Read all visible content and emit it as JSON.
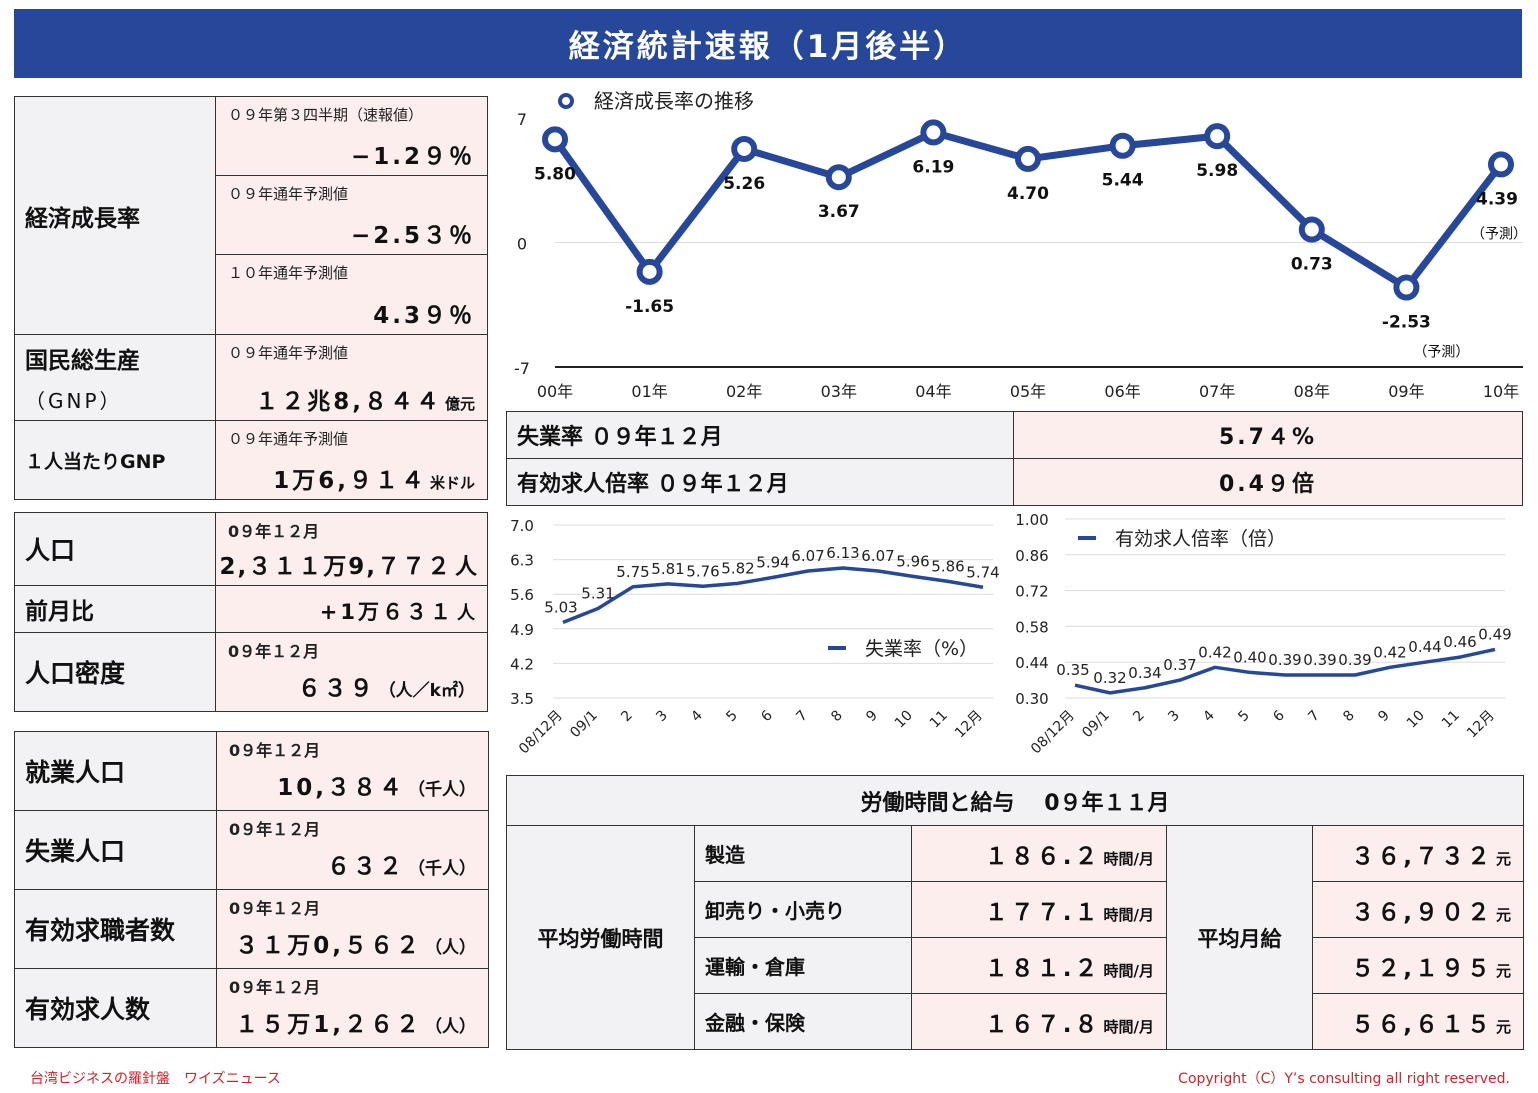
{
  "header": {
    "title": "経済統計速報（1月後半）"
  },
  "growth_block": {
    "label": "経済成長率",
    "rows": [
      {
        "sub": "０９年第３四半期（速報値）",
        "value": "−1.2９％"
      },
      {
        "sub": "０９年通年予測値",
        "value": "−2.5３％"
      },
      {
        "sub": "１０年通年予測値",
        "value": "4.3９％"
      }
    ]
  },
  "gnp_block": {
    "label": "国民総生産",
    "label2": "（GNP）",
    "sub": "０９年通年予測値",
    "value": "１２兆8,８４４",
    "unit": "億元"
  },
  "gnp_per_capita": {
    "label": "１人当たりGNP",
    "sub": "０９年通年予測値",
    "value": "1万6,９１４",
    "unit": "米ドル"
  },
  "population_block": {
    "rows": [
      {
        "label": "人口",
        "sub": "0９年１２月",
        "value": "2,３１１万9,７７２",
        "unit": "人"
      },
      {
        "label": "前月比",
        "sub": "",
        "value": "+1万６３１",
        "unit": "人"
      },
      {
        "label": "人口密度",
        "sub": "0９年１２月",
        "value": "６３９",
        "unit": "（人／k㎡）"
      }
    ]
  },
  "employment_block": {
    "rows": [
      {
        "label": "就業人口",
        "sub": "0９年１２月",
        "value": "10,３８４",
        "unit": "（千人）"
      },
      {
        "label": "失業人口",
        "sub": "0９年１２月",
        "value": "６３２",
        "unit": "（千人）"
      },
      {
        "label": "有効求職者数",
        "sub": "0９年１２月",
        "value": "３１万0,５６２",
        "unit": "（人）"
      },
      {
        "label": "有効求人数",
        "sub": "0９年１２月",
        "value": "１５万1,２６２",
        "unit": "（人）"
      }
    ]
  },
  "indicator_table": {
    "rows": [
      {
        "label": "失業率 ０９年１２月",
        "value": "5.7４%"
      },
      {
        "label": "有効求人倍率 ０９年１２月",
        "value": "0.4９倍"
      }
    ]
  },
  "wage_table": {
    "title": "労働時間と給与　 0９年１１月",
    "hours_label": "平均労働時間",
    "wage_label": "平均月給",
    "hours_unit": "時間/月",
    "wage_unit": "元",
    "rows": [
      {
        "sector": "製造",
        "hours": "１８６.２",
        "wage": "３６,７３２"
      },
      {
        "sector": "卸売り・小売り",
        "hours": "１７７.１",
        "wage": "３６,９０２"
      },
      {
        "sector": "運輸・倉庫",
        "hours": "１８１.２",
        "wage": "５２,１９５"
      },
      {
        "sector": "金融・保険",
        "hours": "１６７.８",
        "wage": "５６,６１５"
      }
    ]
  },
  "footer": {
    "left": "台湾ビジネスの羅針盤　ワイズニュース",
    "right": "Copyright（C）Y’s consulting all right reserved."
  },
  "colors": {
    "header_bg": "#26479a",
    "series": "#26479a",
    "value_bg": "#fdeeee",
    "label_bg": "#f2f2f5",
    "footer": "#c8262e"
  },
  "chart_data": [
    {
      "type": "line",
      "categories": [
        "00年",
        "01年",
        "02年",
        "03年",
        "04年",
        "05年",
        "06年",
        "07年",
        "08年",
        "09年",
        "10年"
      ],
      "series": [
        {
          "name": "経済成長率の推移",
          "values": [
            5.8,
            -1.65,
            5.26,
            3.67,
            6.19,
            4.7,
            5.44,
            5.98,
            0.73,
            -2.53,
            4.39
          ]
        }
      ],
      "value_labels": [
        "5.80",
        "-1.65",
        "5.26",
        "3.67",
        "6.19",
        "4.70",
        "5.44",
        "5.98",
        "0.73",
        "-2.53",
        "4.39"
      ],
      "annotations": [
        "（予測）",
        "（予測）"
      ],
      "y_ticks": [
        "7",
        "0",
        "-7"
      ],
      "ylim": [
        -7,
        7
      ],
      "markers": true,
      "grid": true,
      "legend": "top-left"
    },
    {
      "type": "line",
      "categories": [
        "08/12月",
        "09/1",
        "2",
        "3",
        "4",
        "5",
        "6",
        "7",
        "8",
        "9",
        "10",
        "11",
        "12月"
      ],
      "series": [
        {
          "name": "失業率（%）",
          "values": [
            5.03,
            5.31,
            5.75,
            5.81,
            5.76,
            5.82,
            5.94,
            6.07,
            6.13,
            6.07,
            5.96,
            5.86,
            5.74
          ]
        }
      ],
      "value_labels": [
        "5.03",
        "5.31",
        "5.75",
        "5.81",
        "5.76",
        "5.82",
        "5.94",
        "6.07",
        "6.13",
        "6.07",
        "5.96",
        "5.86",
        "5.74"
      ],
      "y_ticks": [
        "7.0",
        "6.3",
        "5.6",
        "4.9",
        "4.2",
        "3.5"
      ],
      "ylim": [
        3.5,
        7.0
      ],
      "grid": true,
      "legend": "bottom-right"
    },
    {
      "type": "line",
      "categories": [
        "08/12月",
        "09/1",
        "2",
        "3",
        "4",
        "5",
        "6",
        "7",
        "8",
        "9",
        "10",
        "11",
        "12月"
      ],
      "series": [
        {
          "name": "有効求人倍率（倍）",
          "values": [
            0.35,
            0.32,
            0.34,
            0.37,
            0.42,
            0.4,
            0.39,
            0.39,
            0.39,
            0.42,
            0.44,
            0.46,
            0.49
          ]
        }
      ],
      "value_labels": [
        "0.35",
        "0.32",
        "0.34",
        "0.37",
        "0.42",
        "0.40",
        "0.39",
        "0.39",
        "0.39",
        "0.42",
        "0.44",
        "0.46",
        "0.49"
      ],
      "y_ticks": [
        "1.00",
        "0.86",
        "0.72",
        "0.58",
        "0.44",
        "0.30"
      ],
      "ylim": [
        0.3,
        1.0
      ],
      "grid": true,
      "legend": "top-left"
    }
  ]
}
